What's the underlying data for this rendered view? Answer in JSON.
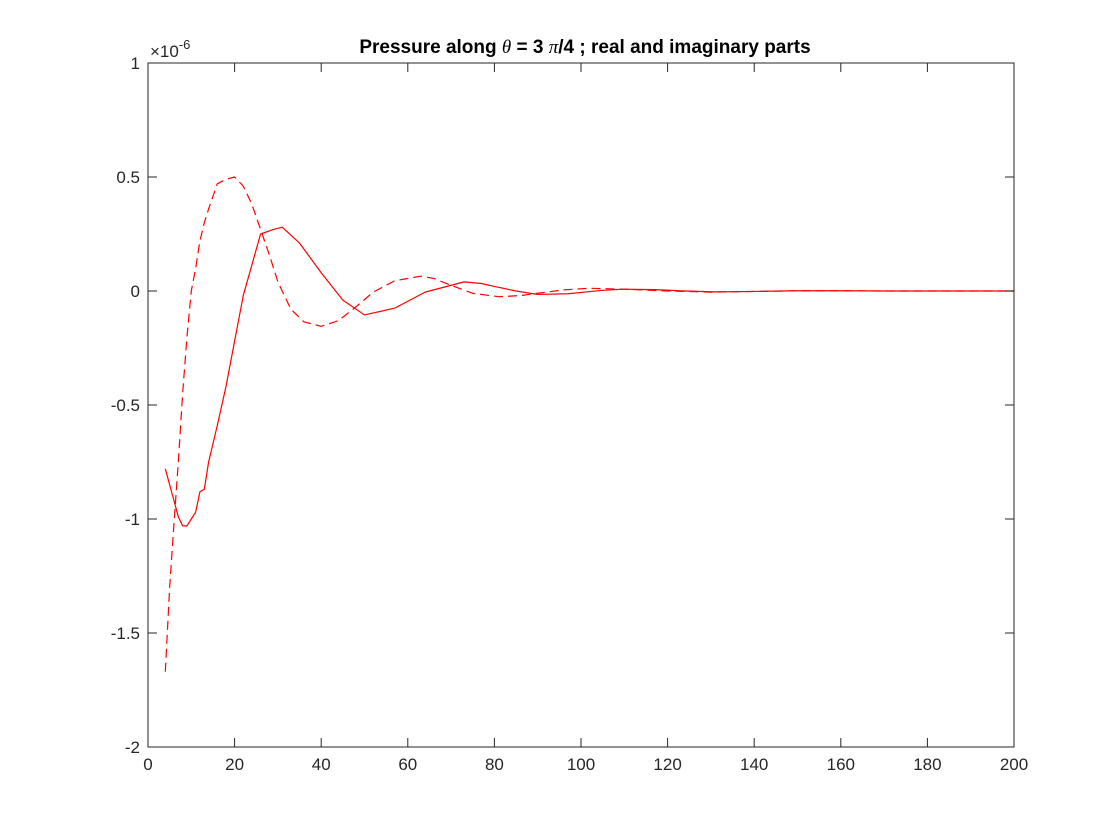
{
  "chart_data": {
    "type": "line",
    "title": {
      "prefix": "Pressure along ",
      "symbol": "θ",
      "middle": " = 3 ",
      "symbol2": "π",
      "suffix": "/4 ; real and imaginary parts"
    },
    "xlabel": "",
    "ylabel": "",
    "xlim": [
      0,
      200
    ],
    "ylim": [
      -2,
      1
    ],
    "y_exponent": {
      "base": "×10",
      "power": "-6"
    },
    "x_ticks": [
      0,
      20,
      40,
      60,
      80,
      100,
      120,
      140,
      160,
      180,
      200
    ],
    "x_tick_labels": [
      "0",
      "20",
      "40",
      "60",
      "80",
      "100",
      "120",
      "140",
      "160",
      "180",
      "200"
    ],
    "y_ticks": [
      -2,
      -1.5,
      -1,
      -0.5,
      0,
      0.5,
      1
    ],
    "y_tick_labels": [
      "-2",
      "-1.5",
      "-1",
      "-0.5",
      "0",
      "0.5",
      "1"
    ],
    "grid": false,
    "colors": {
      "series": "#ff0000",
      "axes": "#262626"
    },
    "series": [
      {
        "style": "solid",
        "x": [
          4,
          6,
          7,
          8,
          9,
          10,
          11,
          12,
          13,
          14,
          16,
          18,
          20,
          22,
          26,
          29,
          31,
          35,
          40,
          45,
          50,
          57,
          64,
          73,
          77,
          80,
          85,
          90,
          97,
          105,
          110,
          117,
          124,
          131,
          140,
          150,
          160,
          170,
          180,
          190,
          200
        ],
        "y": [
          -0.78,
          -0.92,
          -0.99,
          -1.03,
          -1.03,
          -1.0,
          -0.97,
          -0.88,
          -0.87,
          -0.75,
          -0.59,
          -0.42,
          -0.22,
          -0.02,
          0.25,
          0.27,
          0.28,
          0.21,
          0.08,
          -0.04,
          -0.105,
          -0.075,
          -0.005,
          0.04,
          0.033,
          0.02,
          0.0,
          -0.015,
          -0.012,
          0.003,
          0.008,
          0.006,
          0.0,
          -0.004,
          -0.002,
          0.001,
          0.001,
          0.0,
          0.0,
          0.0,
          0.0
        ]
      },
      {
        "style": "dashed",
        "x": [
          4,
          5,
          6,
          7,
          8,
          9,
          10,
          11,
          12,
          13,
          14,
          16,
          18,
          20,
          22,
          24,
          26,
          28,
          30,
          33,
          36,
          40,
          44,
          48,
          52,
          57,
          63,
          66,
          70,
          75,
          81,
          86,
          90,
          96,
          102,
          110,
          120,
          130,
          140,
          150,
          160,
          170,
          180,
          190,
          200
        ],
        "y": [
          -1.67,
          -1.3,
          -1.02,
          -0.75,
          -0.45,
          -0.2,
          0.0,
          0.1,
          0.22,
          0.3,
          0.36,
          0.47,
          0.49,
          0.5,
          0.46,
          0.38,
          0.27,
          0.16,
          0.04,
          -0.08,
          -0.135,
          -0.155,
          -0.13,
          -0.07,
          -0.005,
          0.045,
          0.065,
          0.055,
          0.025,
          -0.01,
          -0.025,
          -0.02,
          -0.01,
          0.005,
          0.012,
          0.008,
          0.0,
          -0.005,
          -0.002,
          0.001,
          0.001,
          0.0,
          0.0,
          0.0,
          0.0
        ]
      }
    ]
  }
}
